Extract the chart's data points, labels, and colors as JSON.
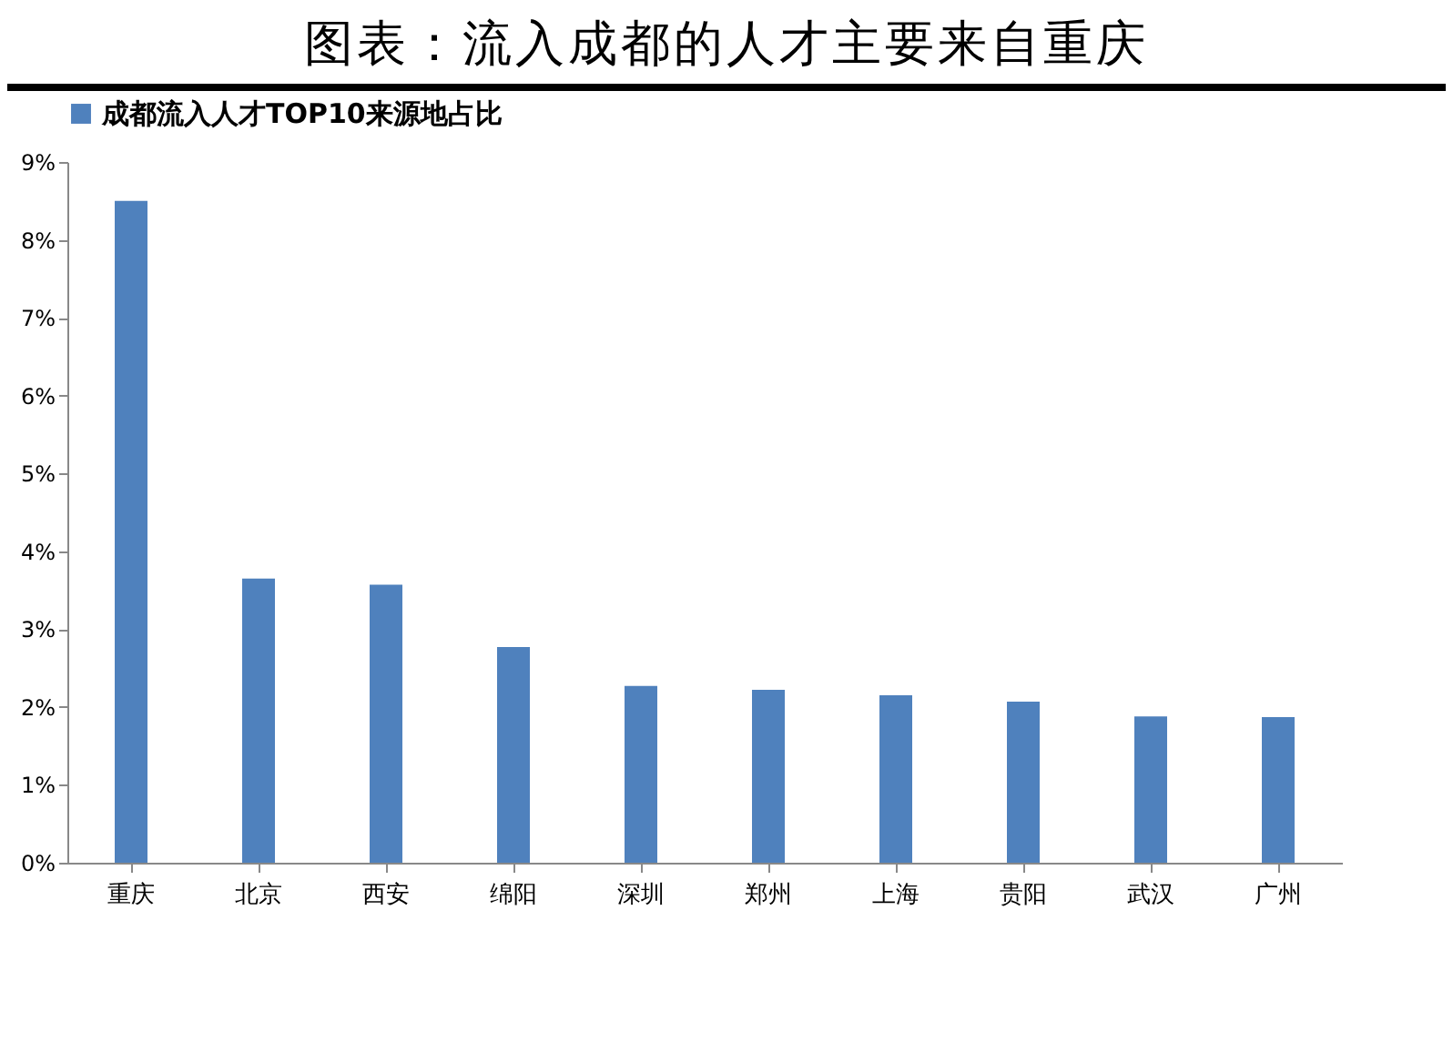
{
  "chart_data": {
    "type": "bar",
    "title": "图表：流入成都的人才主要来自重庆",
    "categories": [
      "重庆",
      "北京",
      "西安",
      "绵阳",
      "深圳",
      "郑州",
      "上海",
      "贵阳",
      "武汉",
      "广州"
    ],
    "series": [
      {
        "name": "成都流入人才TOP10来源地占比",
        "color": "#4f81bd",
        "values": [
          8.5,
          3.65,
          3.57,
          2.77,
          2.27,
          2.22,
          2.15,
          2.07,
          1.88,
          1.87
        ]
      }
    ],
    "ylim": [
      0,
      9
    ],
    "yticks": [
      {
        "value": 0,
        "label": "0%"
      },
      {
        "value": 1,
        "label": "1%"
      },
      {
        "value": 2,
        "label": "2%"
      },
      {
        "value": 3,
        "label": "3%"
      },
      {
        "value": 4,
        "label": "4%"
      },
      {
        "value": 5,
        "label": "5%"
      },
      {
        "value": 6,
        "label": "6%"
      },
      {
        "value": 7,
        "label": "7%"
      },
      {
        "value": 8,
        "label": "8%"
      },
      {
        "value": 9,
        "label": "9%"
      }
    ],
    "grid": false,
    "legend": "top"
  }
}
